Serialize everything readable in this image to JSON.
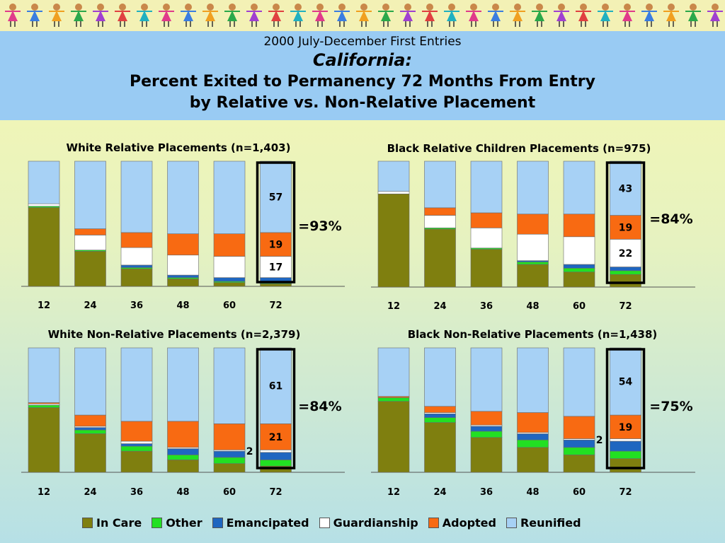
{
  "title": {
    "line1": "2000 July-December First Entries",
    "line2": "California:",
    "line3": "Percent Exited to Permanency 72 Months From Entry",
    "line4": "by Relative vs. Non-Relative Placement"
  },
  "legend": [
    {
      "label": "In Care",
      "color": "#7f7f0f"
    },
    {
      "label": "Other",
      "color": "#22e022"
    },
    {
      "label": "Emancipated",
      "color": "#1f66c0"
    },
    {
      "label": "Guardianship",
      "color": "#ffffff"
    },
    {
      "label": "Adopted",
      "color": "#f86a12"
    },
    {
      "label": "Reunified",
      "color": "#a7d1f5"
    }
  ],
  "chart_data": [
    {
      "type": "bar",
      "stacked": true,
      "title": "White Relative Placements (n=1,403)",
      "categories": [
        "12",
        "24",
        "36",
        "48",
        "60",
        "72"
      ],
      "highlight_category": "72",
      "summary_label": "=93%",
      "series": [
        {
          "name": "In Care",
          "values": [
            63,
            28,
            14,
            6,
            3,
            2
          ]
        },
        {
          "name": "Other",
          "values": [
            1,
            1,
            1,
            1,
            1,
            2
          ]
        },
        {
          "name": "Emancipated",
          "values": [
            0,
            0,
            2,
            2,
            3,
            3
          ]
        },
        {
          "name": "Guardianship",
          "values": [
            2,
            12,
            14,
            16,
            17,
            17
          ]
        },
        {
          "name": "Adopted",
          "values": [
            0,
            5,
            12,
            17,
            18,
            19
          ]
        },
        {
          "name": "Reunified",
          "values": [
            34,
            54,
            57,
            58,
            58,
            57
          ]
        }
      ],
      "data_labels": {
        "Reunified": "57",
        "Adopted": "19",
        "Guardianship": "17"
      }
    },
    {
      "type": "bar",
      "stacked": true,
      "title": "Black Relative Children Placements (n=975)",
      "categories": [
        "12",
        "24",
        "36",
        "48",
        "60",
        "72"
      ],
      "highlight_category": "72",
      "summary_label": "=84%",
      "series": [
        {
          "name": "In Care",
          "values": [
            74,
            46,
            30,
            18,
            12,
            10
          ]
        },
        {
          "name": "Other",
          "values": [
            0,
            1,
            1,
            2,
            3,
            3
          ]
        },
        {
          "name": "Emancipated",
          "values": [
            0,
            0,
            0,
            1,
            3,
            3
          ]
        },
        {
          "name": "Guardianship",
          "values": [
            2,
            10,
            16,
            21,
            22,
            22
          ]
        },
        {
          "name": "Adopted",
          "values": [
            0,
            6,
            12,
            16,
            18,
            19
          ]
        },
        {
          "name": "Reunified",
          "values": [
            24,
            37,
            41,
            42,
            42,
            43
          ]
        }
      ],
      "data_labels": {
        "Reunified": "43",
        "Adopted": "19",
        "Guardianship": "22"
      }
    },
    {
      "type": "bar",
      "stacked": true,
      "title": "White Non-Relative Placements (n=2,379)",
      "categories": [
        "12",
        "24",
        "36",
        "48",
        "60",
        "72"
      ],
      "highlight_category": "72",
      "summary_label": "=84%",
      "series": [
        {
          "name": "In Care",
          "values": [
            52,
            31,
            17,
            10,
            7,
            5
          ]
        },
        {
          "name": "Other",
          "values": [
            2,
            3,
            4,
            4,
            5,
            5
          ]
        },
        {
          "name": "Emancipated",
          "values": [
            0,
            2,
            2,
            5,
            5,
            6
          ]
        },
        {
          "name": "Guardianship",
          "values": [
            1,
            1,
            2,
            1,
            1,
            2
          ]
        },
        {
          "name": "Adopted",
          "values": [
            1,
            9,
            16,
            21,
            21,
            21
          ]
        },
        {
          "name": "Reunified",
          "values": [
            44,
            54,
            59,
            59,
            61,
            61
          ]
        }
      ],
      "data_labels": {
        "Reunified": "61",
        "Adopted": "21",
        "Guardianship": "2"
      }
    },
    {
      "type": "bar",
      "stacked": true,
      "title": "Black Non-Relative Placements (n=1,438)",
      "categories": [
        "12",
        "24",
        "36",
        "48",
        "60",
        "72"
      ],
      "highlight_category": "72",
      "summary_label": "=75%",
      "series": [
        {
          "name": "In Care",
          "values": [
            57,
            40,
            28,
            20,
            14,
            11
          ]
        },
        {
          "name": "Other",
          "values": [
            3,
            4,
            5,
            6,
            6,
            6
          ]
        },
        {
          "name": "Emancipated",
          "values": [
            0,
            3,
            4,
            5,
            6,
            8
          ]
        },
        {
          "name": "Guardianship",
          "values": [
            0,
            1,
            1,
            1,
            1,
            2
          ]
        },
        {
          "name": "Adopted",
          "values": [
            1,
            5,
            11,
            16,
            18,
            19
          ]
        },
        {
          "name": "Reunified",
          "values": [
            39,
            47,
            51,
            52,
            55,
            54
          ]
        }
      ],
      "data_labels": {
        "Reunified": "54",
        "Adopted": "19",
        "Guardianship": "2"
      }
    }
  ]
}
